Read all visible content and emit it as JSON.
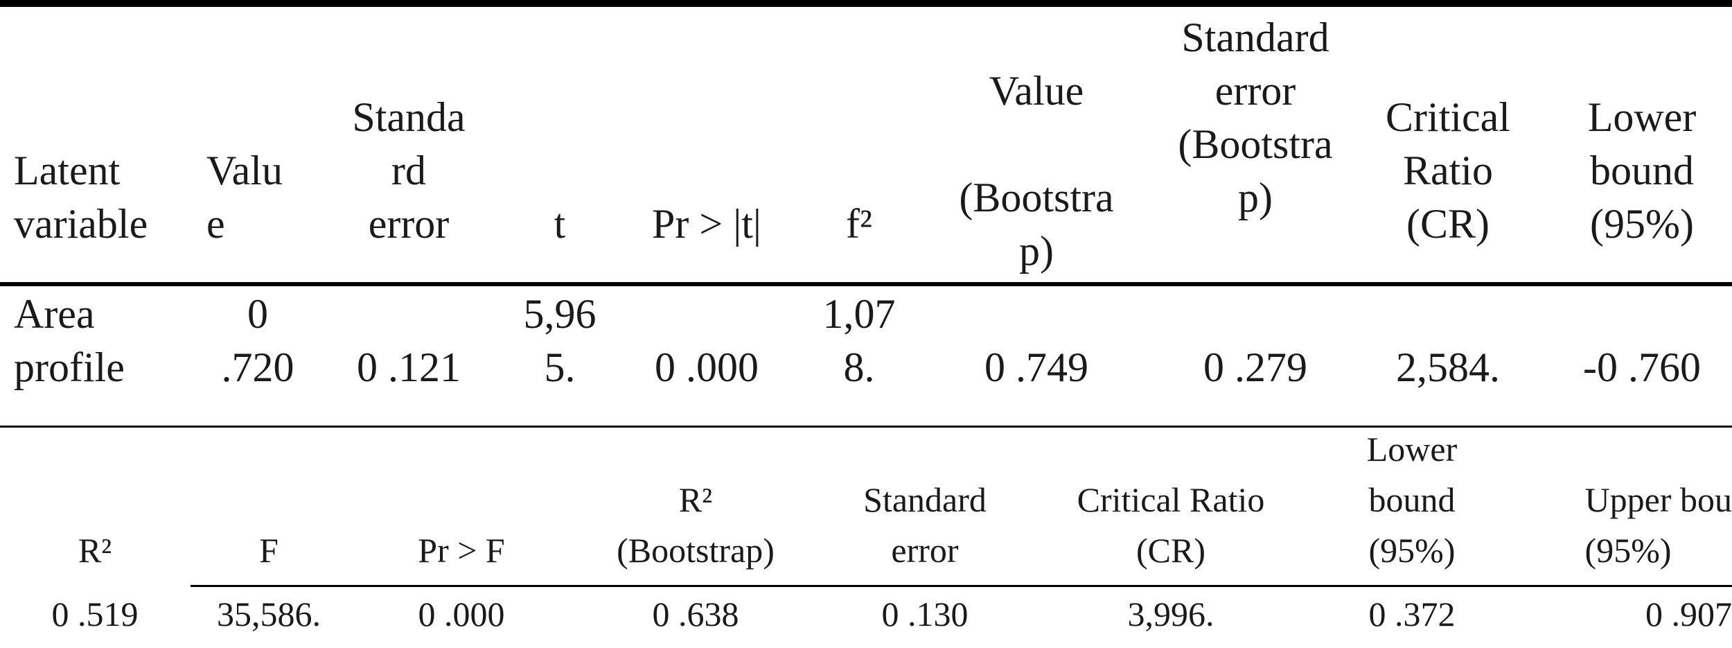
{
  "table1": {
    "headers": {
      "latent_variable": "Latent\nvariable",
      "value": "Valu\ne",
      "standard_error": "Standa\nrd\nerror",
      "t": "t",
      "pr_t": "Pr > |t|",
      "f2": "f²",
      "value_bootstrap": "Value\n\n(Bootstra\np)",
      "se_bootstrap": "Standard\nerror\n(Bootstra\np)",
      "critical_ratio": "Critical\nRatio\n(CR)",
      "lower_bound": "Lower\nbound\n(95%)"
    },
    "row": {
      "latent_variable": "Area\nprofile",
      "value": "0\n.720",
      "standard_error": "0 .121",
      "t": "5,96\n5.",
      "pr_t": "0 .000",
      "f2": "1,07\n8.",
      "value_bootstrap": "0 .749",
      "se_bootstrap": "0 .279",
      "critical_ratio": "2,584.",
      "lower_bound": "-0 .760"
    }
  },
  "table2": {
    "headers": {
      "r2": "R²",
      "f": "F",
      "pr_f": "Pr > F",
      "r2_bootstrap": "R²\n(Bootstrap)",
      "standard_error": "Standard\nerror",
      "critical_ratio": "Critical Ratio\n(CR)",
      "lower_bound": "Lower\nbound\n(95%)",
      "upper_bound": "Upper bou\n(95%)"
    },
    "row": {
      "r2": "0 .519",
      "f": "35,586.",
      "pr_f": "0 .000",
      "r2_bootstrap": "0 .638",
      "standard_error": "0 .130",
      "critical_ratio": "3,996.",
      "lower_bound": "0 .372",
      "upper_bound": "0 .907"
    }
  }
}
